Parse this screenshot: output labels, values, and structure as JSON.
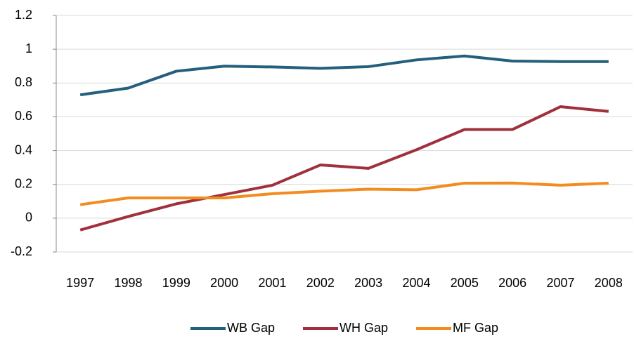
{
  "chart_data": {
    "type": "line",
    "categories": [
      "1997",
      "1998",
      "1999",
      "2000",
      "2001",
      "2002",
      "2003",
      "2004",
      "2005",
      "2006",
      "2007",
      "2008"
    ],
    "series": [
      {
        "name": "WB Gap",
        "color": "#245f7d",
        "values": [
          0.73,
          0.77,
          0.87,
          0.9,
          0.895,
          0.887,
          0.897,
          0.937,
          0.96,
          0.93,
          0.927,
          0.927
        ]
      },
      {
        "name": "WH Gap",
        "color": "#a0303c",
        "values": [
          -0.07,
          0.01,
          0.085,
          0.14,
          0.195,
          0.315,
          0.295,
          0.405,
          0.525,
          0.525,
          0.66,
          0.632
        ]
      },
      {
        "name": "MF Gap",
        "color": "#f28c1e",
        "values": [
          0.08,
          0.12,
          0.12,
          0.12,
          0.145,
          0.16,
          0.172,
          0.168,
          0.207,
          0.208,
          0.195,
          0.207
        ]
      }
    ],
    "ylim": [
      -0.2,
      1.2
    ],
    "yticks": [
      -0.2,
      0,
      0.2,
      0.4,
      0.6,
      0.8,
      1,
      1.2
    ],
    "grid": true,
    "legend": "bottom"
  }
}
